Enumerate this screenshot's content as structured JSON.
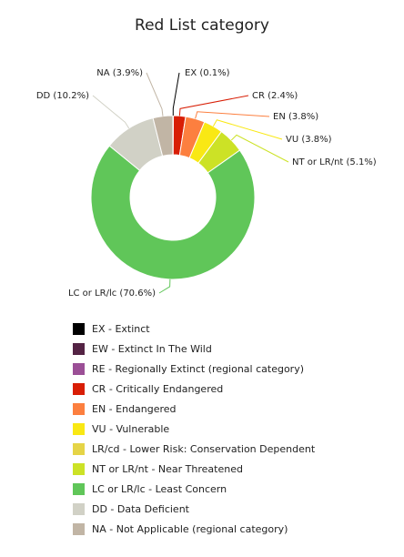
{
  "chart_data": {
    "type": "pie",
    "title": "Red List category",
    "slices": [
      {
        "key": "EX",
        "label": "EX (0.1%)",
        "value": 0.1,
        "color": "#000000"
      },
      {
        "key": "CR",
        "label": "CR (2.4%)",
        "value": 2.4,
        "color": "#d81e05"
      },
      {
        "key": "EN",
        "label": "EN (3.8%)",
        "value": 3.8,
        "color": "#fc7f3f"
      },
      {
        "key": "VU",
        "label": "VU (3.8%)",
        "value": 3.8,
        "color": "#f9e814"
      },
      {
        "key": "NT",
        "label": "NT or LR/nt (5.1%)",
        "value": 5.1,
        "color": "#cce226"
      },
      {
        "key": "LC",
        "label": "LC or LR/lc (70.6%)",
        "value": 70.6,
        "color": "#60c659"
      },
      {
        "key": "DD",
        "label": "DD (10.2%)",
        "value": 10.2,
        "color": "#d1d1c6"
      },
      {
        "key": "NA",
        "label": "NA (3.9%)",
        "value": 3.9,
        "color": "#c1b5a5"
      }
    ],
    "legend": [
      {
        "label": "EX - Extinct",
        "color": "#000000"
      },
      {
        "label": "EW - Extinct In The Wild",
        "color": "#542344"
      },
      {
        "label": "RE - Regionally Extinct (regional category)",
        "color": "#9b4f96"
      },
      {
        "label": "CR - Critically Endangered",
        "color": "#d81e05"
      },
      {
        "label": "EN - Endangered",
        "color": "#fc7f3f"
      },
      {
        "label": "VU - Vulnerable",
        "color": "#f9e814"
      },
      {
        "label": "LR/cd - Lower Risk: Conservation Dependent",
        "color": "#e5d447"
      },
      {
        "label": "NT or LR/nt - Near Threatened",
        "color": "#cce226"
      },
      {
        "label": "LC or LR/lc - Least Concern",
        "color": "#60c659"
      },
      {
        "label": "DD - Data Deficient",
        "color": "#d1d1c6"
      },
      {
        "label": "NA - Not Applicable (regional category)",
        "color": "#c1b5a5"
      }
    ]
  }
}
